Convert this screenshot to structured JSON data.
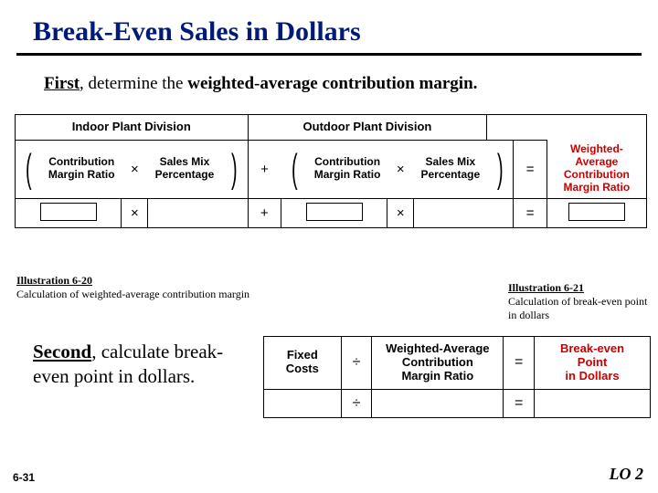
{
  "title": "Break-Even Sales in Dollars",
  "intro": {
    "first": "First",
    "rest": ", determine the ",
    "bold": "weighted-average contribution margin."
  },
  "formula1": {
    "headers": {
      "left": "Indoor Plant Division",
      "right": "Outdoor Plant Division"
    },
    "cells": {
      "cmr1": "Contribution\nMargin Ratio",
      "smp1": "Sales Mix\nPercentage",
      "cmr2": "Contribution\nMargin Ratio",
      "smp2": "Sales Mix\nPercentage",
      "result": "Weighted-\nAverage\nContribution\nMargin Ratio"
    },
    "ops": {
      "times": "×",
      "plus": "+",
      "eq": "="
    }
  },
  "captions": {
    "left_title": "Illustration 6-20",
    "left_text": "Calculation of weighted-average contribution margin",
    "right_title": "Illustration 6-21",
    "right_text": "Calculation of break-even point in dollars"
  },
  "second": {
    "first": "Second",
    "rest": ", calculate break-even point in dollars."
  },
  "formula2": {
    "fixed": "Fixed\nCosts",
    "div": "÷",
    "wacm": "Weighted-Average\nContribution\nMargin Ratio",
    "eq": "=",
    "result": "Break-even\nPoint\nin Dollars"
  },
  "footer": {
    "page": "6-31",
    "lo": "LO 2"
  },
  "colors": {
    "title": "#001a7a",
    "accent": "#cc0000"
  }
}
